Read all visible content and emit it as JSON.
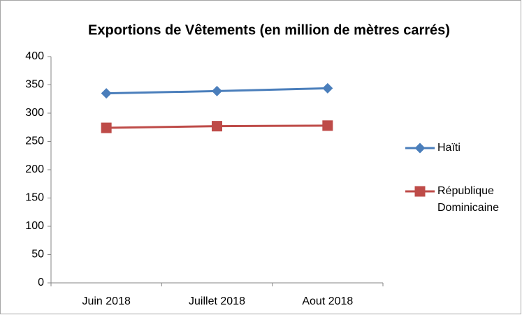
{
  "chart_data": {
    "type": "line",
    "title": "Exportions de Vêtements (en million de mètres carrés)",
    "categories": [
      "Juin 2018",
      "Juillet 2018",
      "Aout 2018"
    ],
    "series": [
      {
        "name": "Haïti",
        "color": "#4a7ebb",
        "marker": "diamond",
        "values": [
          335,
          339,
          344
        ]
      },
      {
        "name": "République Dominicaine",
        "color": "#be4b48",
        "marker": "square",
        "values": [
          274,
          277,
          278
        ]
      }
    ],
    "ylim": [
      0,
      400
    ],
    "yticks": [
      0,
      50,
      100,
      150,
      200,
      250,
      300,
      350,
      400
    ],
    "grid": false,
    "legend": "right"
  }
}
